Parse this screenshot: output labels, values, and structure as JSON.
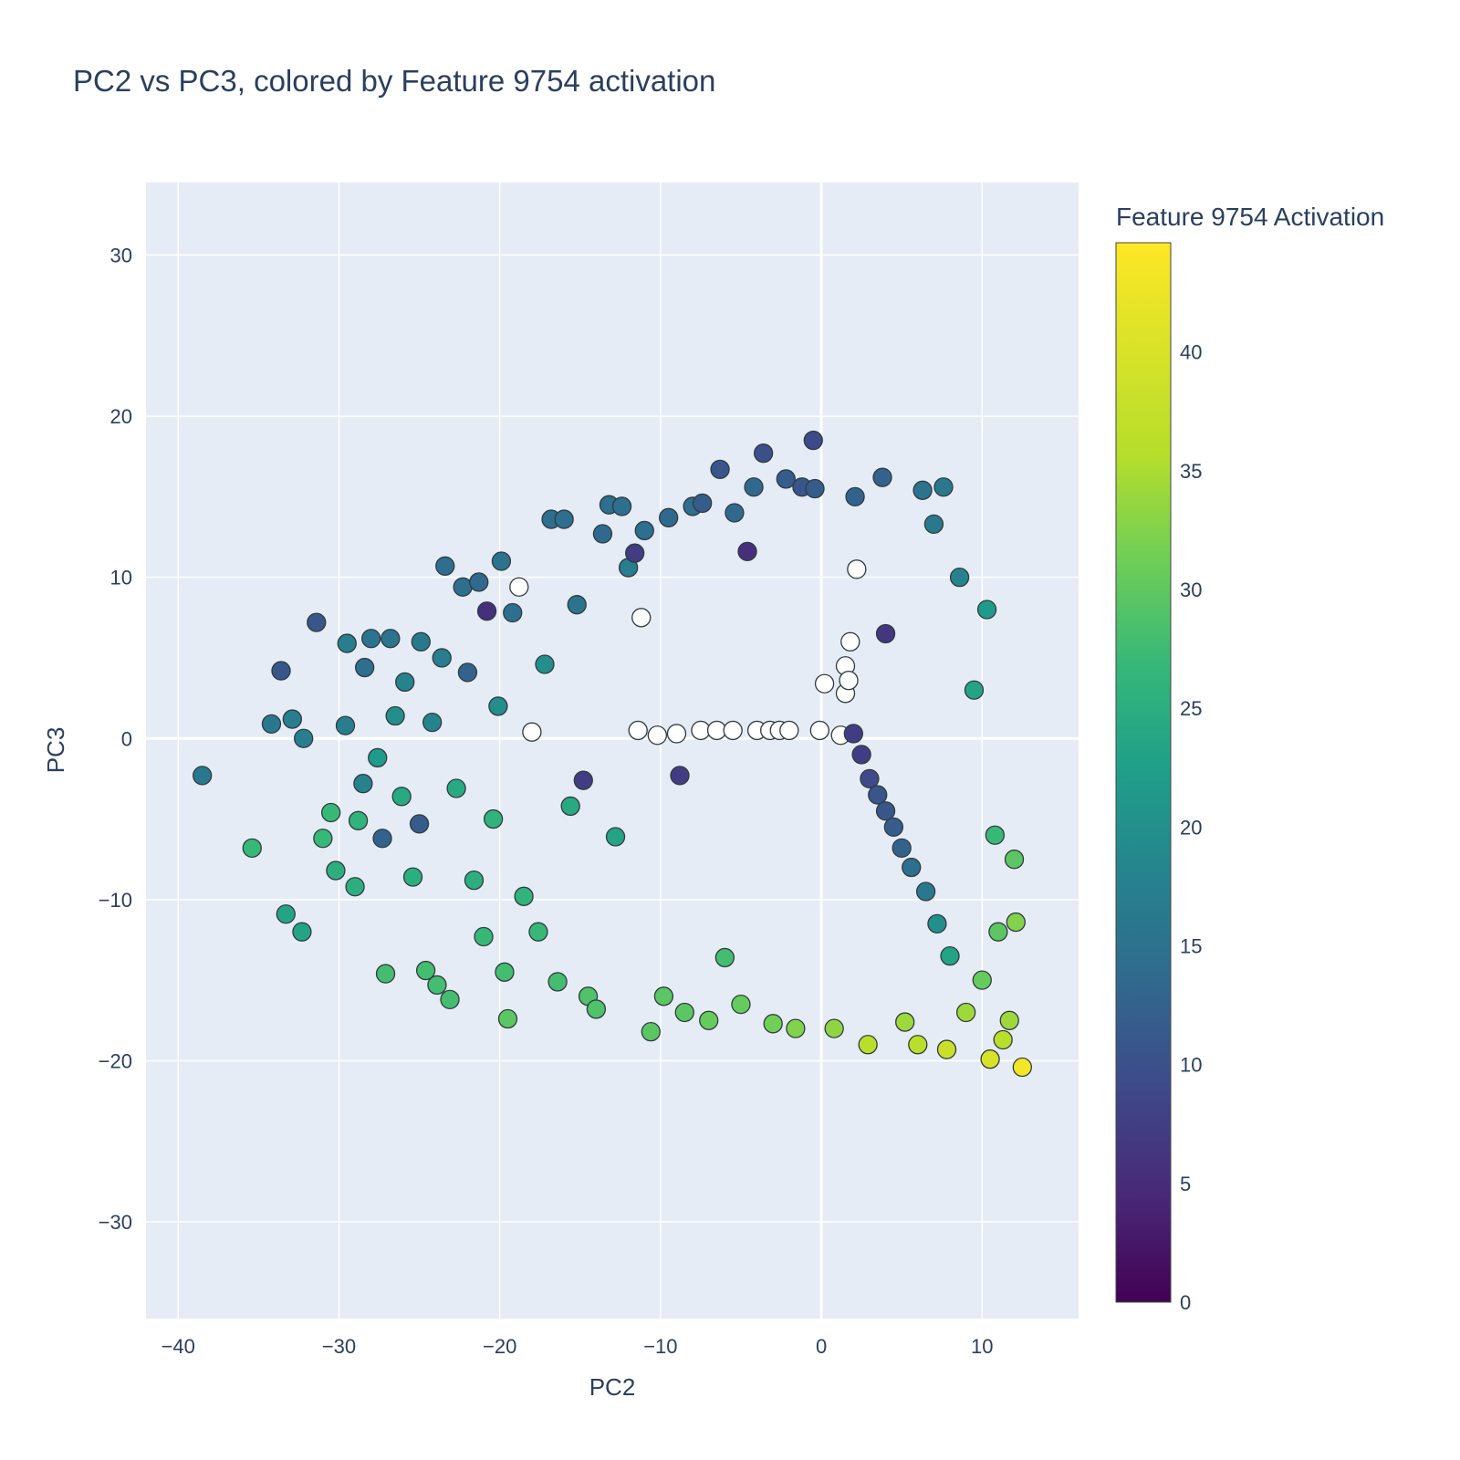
{
  "chart_data": {
    "type": "scatter",
    "title": "PC2 vs PC3, colored by Feature 9754 activation",
    "xlabel": "PC2",
    "ylabel": "PC3",
    "xlim": [
      -42,
      16
    ],
    "ylim": [
      -36,
      34.5
    ],
    "x_ticks": [
      -40,
      -30,
      -20,
      -10,
      0,
      10
    ],
    "y_ticks": [
      -30,
      -20,
      -10,
      0,
      10,
      20,
      30
    ],
    "grid": true,
    "colorbar": {
      "title": "Feature 9754 Activation",
      "colorscale": "viridis",
      "range": [
        0,
        44.6
      ],
      "ticks": [
        0,
        5,
        10,
        15,
        20,
        25,
        30,
        35,
        40
      ]
    },
    "points": [
      {
        "x": -38.5,
        "y": -2.3,
        "c": 18
      },
      {
        "x": -35.4,
        "y": -6.8,
        "c": 30
      },
      {
        "x": -34.2,
        "y": 0.9,
        "c": 18
      },
      {
        "x": -33.6,
        "y": 4.2,
        "c": 12
      },
      {
        "x": -33.3,
        "y": -10.9,
        "c": 26
      },
      {
        "x": -32.9,
        "y": 1.2,
        "c": 19
      },
      {
        "x": -32.3,
        "y": -12.0,
        "c": 26
      },
      {
        "x": -32.2,
        "y": 0.0,
        "c": 19
      },
      {
        "x": -31.4,
        "y": 7.2,
        "c": 12
      },
      {
        "x": -31.0,
        "y": -6.2,
        "c": 30
      },
      {
        "x": -30.5,
        "y": -4.6,
        "c": 30
      },
      {
        "x": -30.2,
        "y": -8.2,
        "c": 28
      },
      {
        "x": -29.6,
        "y": 0.8,
        "c": 19
      },
      {
        "x": -29.5,
        "y": 5.9,
        "c": 19
      },
      {
        "x": -29.0,
        "y": -9.2,
        "c": 28
      },
      {
        "x": -28.8,
        "y": -5.1,
        "c": 29
      },
      {
        "x": -28.5,
        "y": -2.8,
        "c": 20
      },
      {
        "x": -28.4,
        "y": 4.4,
        "c": 16
      },
      {
        "x": -28.0,
        "y": 6.2,
        "c": 17
      },
      {
        "x": -27.6,
        "y": -1.2,
        "c": 24
      },
      {
        "x": -27.3,
        "y": -6.2,
        "c": 14
      },
      {
        "x": -27.1,
        "y": -14.6,
        "c": 31
      },
      {
        "x": -26.8,
        "y": 6.2,
        "c": 17
      },
      {
        "x": -26.5,
        "y": 1.4,
        "c": 22
      },
      {
        "x": -26.1,
        "y": -3.6,
        "c": 27
      },
      {
        "x": -25.9,
        "y": 3.5,
        "c": 20
      },
      {
        "x": -25.4,
        "y": -8.6,
        "c": 28
      },
      {
        "x": -25.0,
        "y": -5.3,
        "c": 13
      },
      {
        "x": -24.9,
        "y": 6.0,
        "c": 18
      },
      {
        "x": -24.6,
        "y": -14.4,
        "c": 31
      },
      {
        "x": -24.2,
        "y": 1.0,
        "c": 20
      },
      {
        "x": -23.9,
        "y": -15.3,
        "c": 31
      },
      {
        "x": -23.6,
        "y": 5.0,
        "c": 19
      },
      {
        "x": -23.4,
        "y": 10.7,
        "c": 16
      },
      {
        "x": -23.1,
        "y": -16.2,
        "c": 31
      },
      {
        "x": -22.7,
        "y": -3.1,
        "c": 27
      },
      {
        "x": -22.3,
        "y": 9.4,
        "c": 16
      },
      {
        "x": -22.0,
        "y": 4.1,
        "c": 14
      },
      {
        "x": -21.6,
        "y": -8.8,
        "c": 28
      },
      {
        "x": -21.3,
        "y": 9.7,
        "c": 15
      },
      {
        "x": -21.0,
        "y": -12.3,
        "c": 30
      },
      {
        "x": -20.8,
        "y": 7.9,
        "c": 6
      },
      {
        "x": -20.4,
        "y": -5.0,
        "c": 29
      },
      {
        "x": -20.1,
        "y": 2.0,
        "c": 22
      },
      {
        "x": -19.9,
        "y": 11.0,
        "c": 17
      },
      {
        "x": -19.7,
        "y": -14.5,
        "c": 31
      },
      {
        "x": -19.5,
        "y": -17.4,
        "c": 33
      },
      {
        "x": -19.2,
        "y": 7.8,
        "c": 16
      },
      {
        "x": -18.8,
        "y": 9.4,
        "c": -1
      },
      {
        "x": -18.5,
        "y": -9.8,
        "c": 29
      },
      {
        "x": -18.0,
        "y": 0.4,
        "c": -1
      },
      {
        "x": -17.6,
        "y": -12.0,
        "c": 30
      },
      {
        "x": -17.2,
        "y": 4.6,
        "c": 22
      },
      {
        "x": -16.8,
        "y": 13.6,
        "c": 16
      },
      {
        "x": -16.4,
        "y": -15.1,
        "c": 31
      },
      {
        "x": -16.0,
        "y": 13.6,
        "c": 16
      },
      {
        "x": -15.6,
        "y": -4.2,
        "c": 27
      },
      {
        "x": -15.2,
        "y": 8.3,
        "c": 17
      },
      {
        "x": -14.8,
        "y": -2.6,
        "c": 8
      },
      {
        "x": -14.5,
        "y": -16.0,
        "c": 32
      },
      {
        "x": -14.0,
        "y": -16.8,
        "c": 32
      },
      {
        "x": -13.6,
        "y": 12.7,
        "c": 15
      },
      {
        "x": -13.2,
        "y": 14.5,
        "c": 16
      },
      {
        "x": -12.8,
        "y": -6.1,
        "c": 26
      },
      {
        "x": -12.4,
        "y": 14.4,
        "c": 16
      },
      {
        "x": -12.0,
        "y": 10.6,
        "c": 19
      },
      {
        "x": -11.6,
        "y": 11.5,
        "c": 8
      },
      {
        "x": -11.4,
        "y": 0.5,
        "c": -1
      },
      {
        "x": -11.2,
        "y": 7.5,
        "c": -1
      },
      {
        "x": -11.0,
        "y": 12.9,
        "c": 16
      },
      {
        "x": -10.6,
        "y": -18.2,
        "c": 33
      },
      {
        "x": -10.2,
        "y": 0.2,
        "c": -1
      },
      {
        "x": -9.8,
        "y": -16.0,
        "c": 33
      },
      {
        "x": -9.5,
        "y": 13.7,
        "c": 15
      },
      {
        "x": -9.0,
        "y": 0.3,
        "c": -1
      },
      {
        "x": -8.8,
        "y": -2.3,
        "c": 8
      },
      {
        "x": -8.5,
        "y": -17.0,
        "c": 33
      },
      {
        "x": -8.0,
        "y": 14.4,
        "c": 16
      },
      {
        "x": -7.5,
        "y": 0.5,
        "c": -1
      },
      {
        "x": -7.4,
        "y": 14.6,
        "c": 13
      },
      {
        "x": -7.0,
        "y": -17.5,
        "c": 34
      },
      {
        "x": -6.5,
        "y": 0.5,
        "c": -1
      },
      {
        "x": -6.3,
        "y": 16.7,
        "c": 12
      },
      {
        "x": -6.0,
        "y": -13.6,
        "c": 31
      },
      {
        "x": -5.5,
        "y": 0.5,
        "c": -1
      },
      {
        "x": -5.4,
        "y": 14.0,
        "c": 15
      },
      {
        "x": -5.0,
        "y": -16.5,
        "c": 34
      },
      {
        "x": -4.6,
        "y": 11.6,
        "c": 6
      },
      {
        "x": -4.2,
        "y": 15.6,
        "c": 15
      },
      {
        "x": -4.0,
        "y": 0.5,
        "c": -1
      },
      {
        "x": -3.6,
        "y": 17.7,
        "c": 11
      },
      {
        "x": -3.2,
        "y": 0.5,
        "c": -1
      },
      {
        "x": -3.0,
        "y": -17.7,
        "c": 35
      },
      {
        "x": -2.6,
        "y": 0.5,
        "c": -1
      },
      {
        "x": -2.2,
        "y": 16.1,
        "c": 13
      },
      {
        "x": -2.0,
        "y": 0.5,
        "c": -1
      },
      {
        "x": -1.6,
        "y": -18.0,
        "c": 36
      },
      {
        "x": -1.2,
        "y": 15.6,
        "c": 12
      },
      {
        "x": -0.5,
        "y": 18.5,
        "c": 10
      },
      {
        "x": -0.4,
        "y": 15.5,
        "c": 13
      },
      {
        "x": -0.1,
        "y": 0.5,
        "c": -1
      },
      {
        "x": 0.2,
        "y": 3.4,
        "c": -1
      },
      {
        "x": 0.8,
        "y": -18.0,
        "c": 37
      },
      {
        "x": 1.2,
        "y": 0.2,
        "c": -1
      },
      {
        "x": 1.5,
        "y": 2.8,
        "c": -1
      },
      {
        "x": 1.5,
        "y": 4.5,
        "c": -1
      },
      {
        "x": 1.7,
        "y": 3.6,
        "c": -1
      },
      {
        "x": 1.8,
        "y": 6.0,
        "c": -1
      },
      {
        "x": 2.0,
        "y": 0.3,
        "c": 8
      },
      {
        "x": 2.1,
        "y": 15.0,
        "c": 14
      },
      {
        "x": 2.2,
        "y": 10.5,
        "c": -1
      },
      {
        "x": 2.5,
        "y": -1.0,
        "c": 8
      },
      {
        "x": 2.9,
        "y": -19.0,
        "c": 40
      },
      {
        "x": 3.0,
        "y": -2.5,
        "c": 10
      },
      {
        "x": 3.5,
        "y": -3.5,
        "c": 12
      },
      {
        "x": 3.8,
        "y": 16.2,
        "c": 14
      },
      {
        "x": 4.0,
        "y": 6.5,
        "c": 7
      },
      {
        "x": 4.0,
        "y": -4.5,
        "c": 12
      },
      {
        "x": 4.5,
        "y": -5.5,
        "c": 13
      },
      {
        "x": 5.0,
        "y": -6.8,
        "c": 14
      },
      {
        "x": 5.2,
        "y": -17.6,
        "c": 38
      },
      {
        "x": 5.6,
        "y": -8.0,
        "c": 16
      },
      {
        "x": 6.0,
        "y": -19.0,
        "c": 40
      },
      {
        "x": 6.3,
        "y": 15.4,
        "c": 17
      },
      {
        "x": 6.5,
        "y": -9.5,
        "c": 18
      },
      {
        "x": 7.0,
        "y": 13.3,
        "c": 18
      },
      {
        "x": 7.2,
        "y": -11.5,
        "c": 22
      },
      {
        "x": 7.6,
        "y": 15.6,
        "c": 18
      },
      {
        "x": 7.8,
        "y": -19.3,
        "c": 41
      },
      {
        "x": 8.0,
        "y": -13.5,
        "c": 26
      },
      {
        "x": 8.6,
        "y": 10.0,
        "c": 20
      },
      {
        "x": 9.0,
        "y": -17.0,
        "c": 38
      },
      {
        "x": 9.5,
        "y": 3.0,
        "c": 26
      },
      {
        "x": 10.0,
        "y": -15.0,
        "c": 34
      },
      {
        "x": 10.3,
        "y": 8.0,
        "c": 24
      },
      {
        "x": 10.5,
        "y": -19.9,
        "c": 42
      },
      {
        "x": 10.8,
        "y": -6.0,
        "c": 30
      },
      {
        "x": 11.0,
        "y": -12.0,
        "c": 33
      },
      {
        "x": 11.3,
        "y": -18.7,
        "c": 40
      },
      {
        "x": 11.7,
        "y": -17.5,
        "c": 38
      },
      {
        "x": 12.0,
        "y": -7.5,
        "c": 33
      },
      {
        "x": 12.1,
        "y": -11.4,
        "c": 36
      },
      {
        "x": 12.5,
        "y": -20.4,
        "c": 44
      }
    ]
  }
}
